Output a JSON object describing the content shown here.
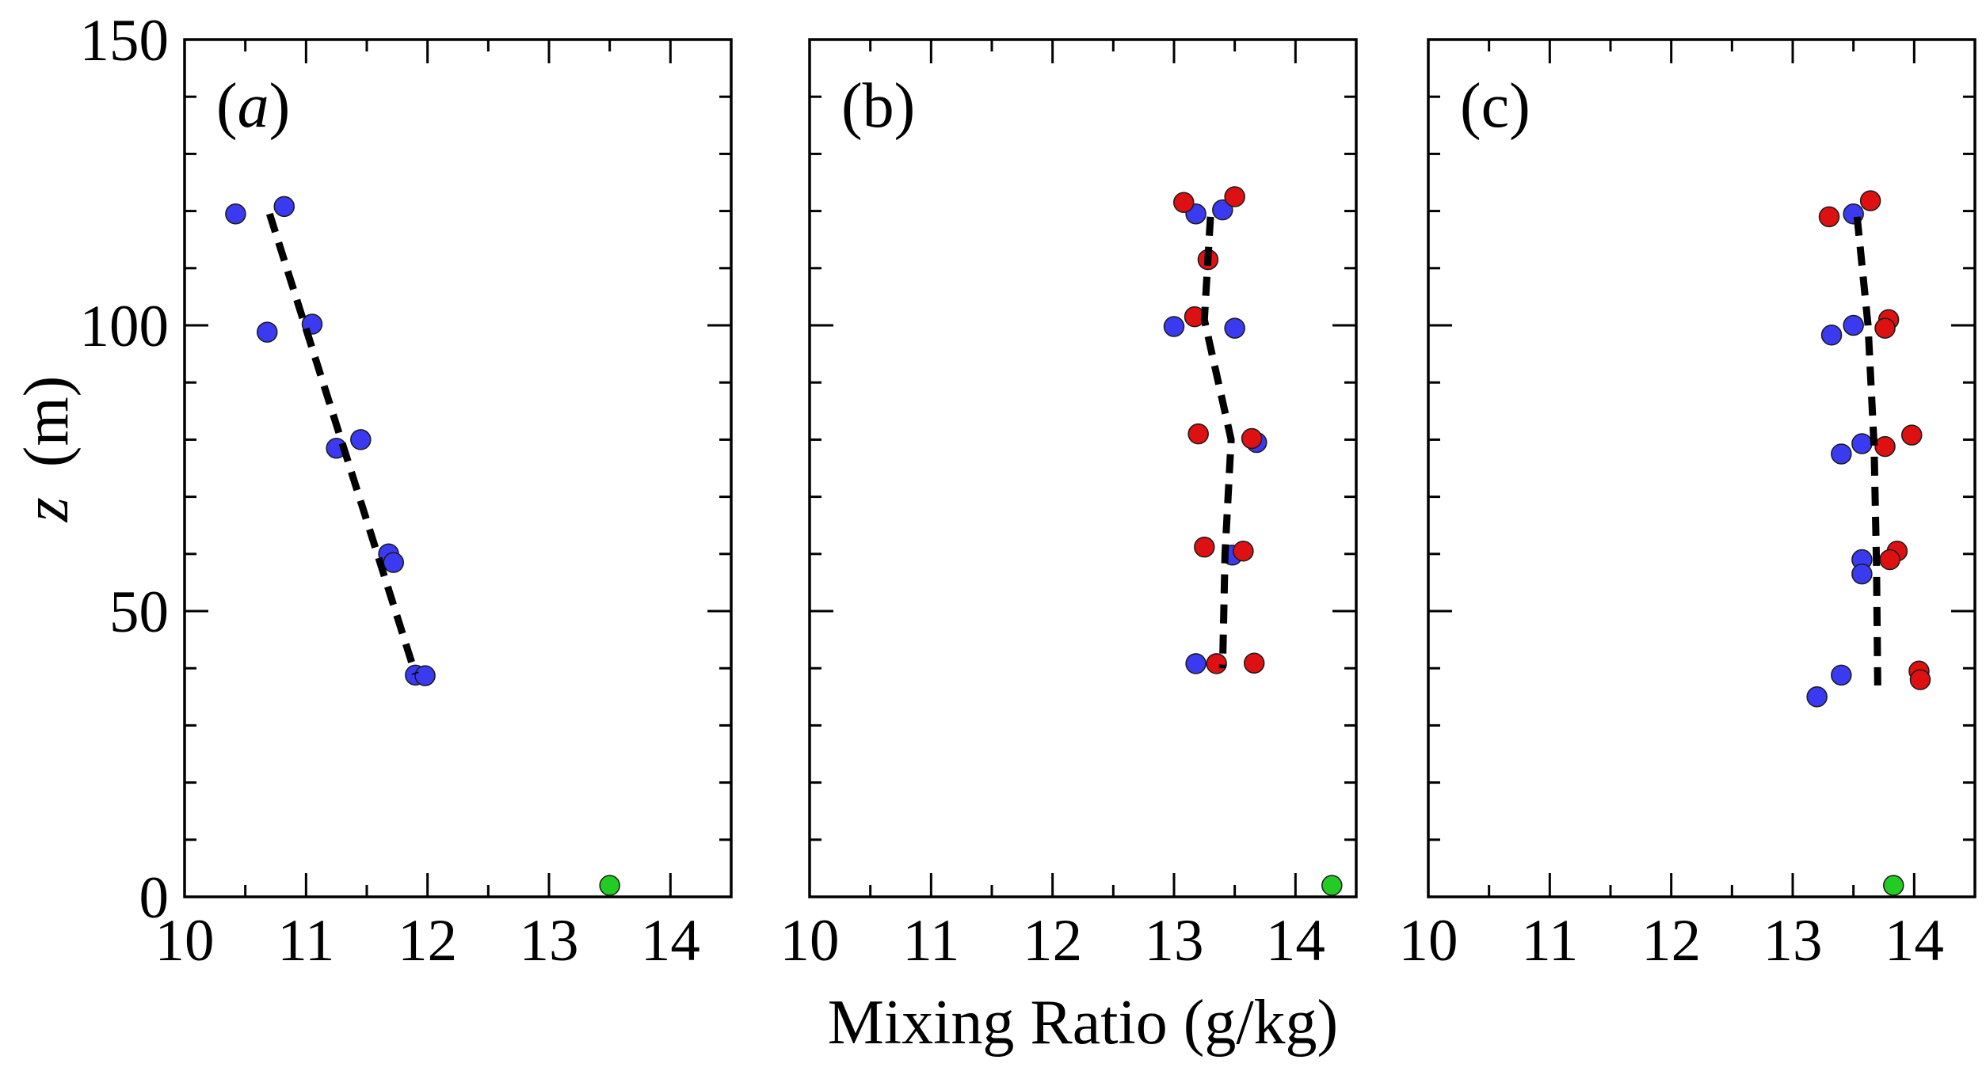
{
  "chart_data": [
    {
      "type": "scatter",
      "panel_label": "(a)",
      "italic_label": true,
      "xlim": [
        10,
        14.5
      ],
      "ylim": [
        0,
        150
      ],
      "series": [
        {
          "name": "blue",
          "color": "#3a3af0",
          "points": [
            [
              10.42,
              119.5
            ],
            [
              10.82,
              120.8
            ],
            [
              10.68,
              98.8
            ],
            [
              11.05,
              100.2
            ],
            [
              11.25,
              78.5
            ],
            [
              11.45,
              80.0
            ],
            [
              11.68,
              60.0
            ],
            [
              11.72,
              58.5
            ],
            [
              11.9,
              38.8
            ],
            [
              11.98,
              38.7
            ]
          ]
        },
        {
          "name": "red",
          "color": "#dd1111",
          "points": []
        },
        {
          "name": "surface",
          "color": "#22cc22",
          "points": [
            [
              13.5,
              2.0
            ]
          ]
        }
      ],
      "fit_line": [
        [
          10.7,
          119.5
        ],
        [
          11.9,
          39.0
        ]
      ]
    },
    {
      "type": "scatter",
      "panel_label": "(b)",
      "italic_label": false,
      "xlim": [
        10,
        14.5
      ],
      "ylim": [
        0,
        150
      ],
      "series": [
        {
          "name": "blue",
          "color": "#3a3af0",
          "points": [
            [
              13.18,
              119.5
            ],
            [
              13.4,
              120.2
            ],
            [
              13.0,
              99.8
            ],
            [
              13.5,
              99.5
            ],
            [
              13.68,
              79.5
            ],
            [
              13.48,
              59.8
            ],
            [
              13.18,
              40.8
            ]
          ]
        },
        {
          "name": "red",
          "color": "#dd1111",
          "points": [
            [
              13.08,
              121.5
            ],
            [
              13.5,
              122.5
            ],
            [
              13.28,
              111.5
            ],
            [
              13.17,
              101.5
            ],
            [
              13.2,
              81.0
            ],
            [
              13.64,
              80.2
            ],
            [
              13.25,
              61.2
            ],
            [
              13.57,
              60.5
            ],
            [
              13.35,
              40.8
            ],
            [
              13.66,
              40.9
            ]
          ]
        },
        {
          "name": "surface",
          "color": "#22cc22",
          "points": [
            [
              14.3,
              2.0
            ]
          ]
        }
      ],
      "fit_line": [
        [
          13.3,
          119.0
        ],
        [
          13.25,
          101.0
        ],
        [
          13.47,
          80.0
        ],
        [
          13.42,
          60.0
        ],
        [
          13.4,
          40.0
        ]
      ]
    },
    {
      "type": "scatter",
      "panel_label": "(c)",
      "italic_label": false,
      "xlim": [
        10,
        14.5
      ],
      "ylim": [
        0,
        150
      ],
      "series": [
        {
          "name": "blue",
          "color": "#3a3af0",
          "points": [
            [
              13.5,
              119.5
            ],
            [
              13.32,
              98.3
            ],
            [
              13.5,
              100.0
            ],
            [
              13.57,
              79.3
            ],
            [
              13.4,
              77.5
            ],
            [
              13.57,
              59.0
            ],
            [
              13.57,
              56.5
            ],
            [
              13.4,
              38.8
            ],
            [
              13.2,
              35.0
            ]
          ]
        },
        {
          "name": "red",
          "color": "#dd1111",
          "points": [
            [
              13.3,
              119.0
            ],
            [
              13.64,
              121.8
            ],
            [
              13.79,
              101.0
            ],
            [
              13.76,
              99.5
            ],
            [
              13.76,
              78.8
            ],
            [
              13.98,
              80.8
            ],
            [
              13.86,
              60.5
            ],
            [
              13.8,
              59.0
            ],
            [
              14.04,
              39.5
            ],
            [
              14.05,
              38.0
            ]
          ]
        },
        {
          "name": "surface",
          "color": "#22cc22",
          "points": [
            [
              13.83,
              2.0
            ]
          ]
        }
      ],
      "fit_line": [
        [
          13.53,
          119.0
        ],
        [
          13.62,
          100.0
        ],
        [
          13.67,
          79.0
        ],
        [
          13.69,
          58.0
        ],
        [
          13.7,
          37.0
        ]
      ]
    }
  ],
  "axes": {
    "x_ticks": [
      "10",
      "11",
      "12",
      "13",
      "14"
    ],
    "y_ticks": [
      "0",
      "50",
      "100",
      "150"
    ],
    "xlabel": "Mixing Ratio (g/kg)",
    "ylabel_var": "z",
    "ylabel_units": "(m)"
  }
}
